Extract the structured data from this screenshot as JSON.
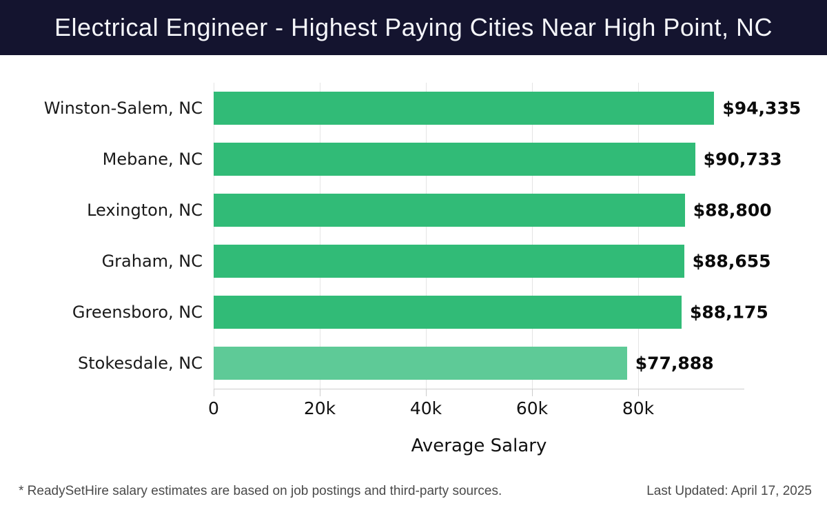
{
  "header": {
    "title": "Electrical Engineer - Highest Paying Cities Near High Point, NC"
  },
  "chart_data": {
    "type": "bar",
    "orientation": "horizontal",
    "title": "Electrical Engineer - Highest Paying Cities Near High Point, NC",
    "categories": [
      "Winston-Salem, NC",
      "Mebane, NC",
      "Lexington, NC",
      "Graham, NC",
      "Greensboro, NC",
      "Stokesdale, NC"
    ],
    "values": [
      94335,
      90733,
      88800,
      88655,
      88175,
      77888
    ],
    "value_labels": [
      "$94,335",
      "$90,733",
      "$88,800",
      "$88,655",
      "$88,175",
      "$77,888"
    ],
    "bar_colors": [
      "#31bb77",
      "#31bb77",
      "#31bb77",
      "#31bb77",
      "#31bb77",
      "#5eca97"
    ],
    "xlabel": "Average Salary",
    "ylabel": "",
    "xlim": [
      0,
      100000
    ],
    "xticks": {
      "values": [
        0,
        20000,
        40000,
        60000,
        80000
      ],
      "labels": [
        "0",
        "20k",
        "40k",
        "60k",
        "80k"
      ]
    },
    "grid": true,
    "legend": false
  },
  "footer": {
    "note": "* ReadySetHire salary estimates are based on job postings and third-party sources.",
    "last_updated": "Last Updated: April 17, 2025"
  },
  "colors": {
    "header_bg": "#14142f",
    "header_text": "#f5f6fa",
    "bar_green": "#31bb77",
    "bar_green_light": "#5eca97",
    "gridline": "#e4e4e4",
    "axis": "#cccccc",
    "label_text": "#1a1a1a",
    "value_text": "#0a0a0a",
    "footer_text": "#4a4a4a"
  }
}
